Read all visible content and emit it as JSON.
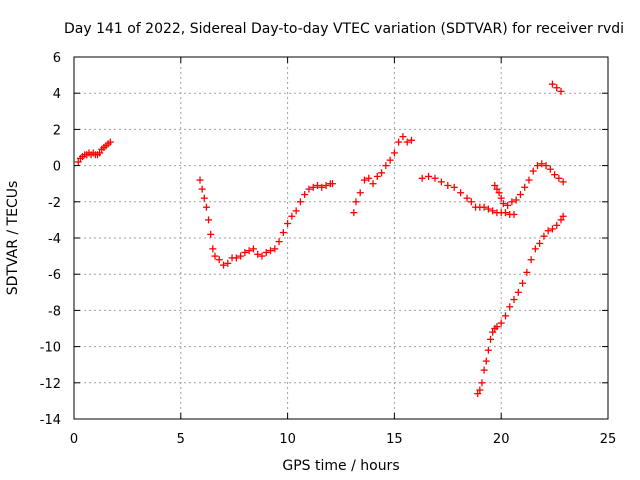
{
  "chart_data": {
    "type": "scatter",
    "title": "Day 141 of 2022, Sidereal Day-to-day VTEC variation (SDTVAR) for receiver rvdi",
    "xlabel": "GPS time / hours",
    "ylabel": "SDTVAR / TECUs",
    "xlim": [
      0,
      25
    ],
    "ylim": [
      -14,
      6
    ],
    "xticks": [
      "0",
      "5",
      "10",
      "15",
      "20",
      "25"
    ],
    "yticks": [
      "6",
      "4",
      "2",
      "0",
      "-2",
      "-4",
      "-6",
      "-8",
      "-10",
      "-12",
      "-14"
    ],
    "grid": true,
    "marker": "plus",
    "color": "#ff0000",
    "series": [
      {
        "points": [
          [
            0.2,
            0.2
          ],
          [
            0.3,
            0.4
          ],
          [
            0.4,
            0.5
          ],
          [
            0.5,
            0.6
          ],
          [
            0.6,
            0.6
          ],
          [
            0.7,
            0.7
          ],
          [
            0.8,
            0.6
          ],
          [
            0.9,
            0.7
          ],
          [
            1.0,
            0.6
          ],
          [
            1.1,
            0.6
          ],
          [
            1.2,
            0.7
          ],
          [
            1.3,
            0.9
          ],
          [
            1.4,
            1.0
          ],
          [
            1.5,
            1.1
          ],
          [
            1.6,
            1.2
          ],
          [
            1.7,
            1.3
          ],
          [
            5.9,
            -0.8
          ],
          [
            6.0,
            -1.3
          ],
          [
            6.1,
            -1.8
          ],
          [
            6.2,
            -2.3
          ],
          [
            6.3,
            -3.0
          ],
          [
            6.4,
            -3.8
          ],
          [
            6.5,
            -4.6
          ],
          [
            6.6,
            -5.0
          ],
          [
            6.8,
            -5.2
          ],
          [
            7.0,
            -5.5
          ],
          [
            7.2,
            -5.4
          ],
          [
            7.4,
            -5.1
          ],
          [
            7.6,
            -5.1
          ],
          [
            7.8,
            -5.0
          ],
          [
            8.0,
            -4.8
          ],
          [
            8.2,
            -4.7
          ],
          [
            8.4,
            -4.6
          ],
          [
            8.6,
            -4.9
          ],
          [
            8.8,
            -5.0
          ],
          [
            9.0,
            -4.8
          ],
          [
            9.2,
            -4.7
          ],
          [
            9.4,
            -4.6
          ],
          [
            9.6,
            -4.2
          ],
          [
            9.8,
            -3.7
          ],
          [
            10.0,
            -3.2
          ],
          [
            10.2,
            -2.8
          ],
          [
            10.4,
            -2.5
          ],
          [
            10.6,
            -2.0
          ],
          [
            10.8,
            -1.6
          ],
          [
            11.0,
            -1.3
          ],
          [
            11.2,
            -1.2
          ],
          [
            11.4,
            -1.1
          ],
          [
            11.6,
            -1.2
          ],
          [
            11.8,
            -1.1
          ],
          [
            12.0,
            -1.0
          ],
          [
            12.1,
            -1.0
          ],
          [
            13.1,
            -2.6
          ],
          [
            13.2,
            -2.0
          ],
          [
            13.4,
            -1.5
          ],
          [
            13.6,
            -0.8
          ],
          [
            13.8,
            -0.7
          ],
          [
            14.0,
            -1.0
          ],
          [
            14.2,
            -0.6
          ],
          [
            14.4,
            -0.4
          ],
          [
            14.6,
            0.0
          ],
          [
            14.8,
            0.3
          ],
          [
            15.0,
            0.7
          ],
          [
            15.2,
            1.3
          ],
          [
            15.4,
            1.6
          ],
          [
            15.6,
            1.3
          ],
          [
            15.8,
            1.4
          ],
          [
            16.3,
            -0.7
          ],
          [
            16.6,
            -0.6
          ],
          [
            16.9,
            -0.7
          ],
          [
            17.2,
            -0.9
          ],
          [
            17.5,
            -1.1
          ],
          [
            17.8,
            -1.2
          ],
          [
            18.1,
            -1.5
          ],
          [
            18.4,
            -1.8
          ],
          [
            18.6,
            -2.0
          ],
          [
            18.8,
            -2.3
          ],
          [
            19.0,
            -2.3
          ],
          [
            19.2,
            -2.3
          ],
          [
            19.4,
            -2.4
          ],
          [
            19.6,
            -2.5
          ],
          [
            19.8,
            -2.6
          ],
          [
            20.0,
            -2.6
          ],
          [
            20.2,
            -2.6
          ],
          [
            20.4,
            -2.7
          ],
          [
            20.6,
            -2.7
          ],
          [
            19.7,
            -1.1
          ],
          [
            19.8,
            -1.3
          ],
          [
            19.9,
            -1.5
          ],
          [
            20.0,
            -1.8
          ],
          [
            20.1,
            -2.1
          ],
          [
            20.3,
            -2.2
          ],
          [
            20.5,
            -2.0
          ],
          [
            20.7,
            -1.9
          ],
          [
            20.9,
            -1.6
          ],
          [
            21.1,
            -1.2
          ],
          [
            21.3,
            -0.8
          ],
          [
            21.5,
            -0.3
          ],
          [
            21.7,
            0.0
          ],
          [
            21.9,
            0.1
          ],
          [
            22.1,
            0.0
          ],
          [
            22.3,
            -0.2
          ],
          [
            22.5,
            -0.5
          ],
          [
            22.7,
            -0.7
          ],
          [
            22.9,
            -0.9
          ],
          [
            22.4,
            4.5
          ],
          [
            22.6,
            4.3
          ],
          [
            22.8,
            4.1
          ],
          [
            18.9,
            -12.6
          ],
          [
            19.0,
            -12.4
          ],
          [
            19.1,
            -12.0
          ],
          [
            19.2,
            -11.3
          ],
          [
            19.3,
            -10.8
          ],
          [
            19.4,
            -10.2
          ],
          [
            19.5,
            -9.6
          ],
          [
            19.6,
            -9.2
          ],
          [
            19.7,
            -9.0
          ],
          [
            19.8,
            -8.9
          ],
          [
            20.0,
            -8.7
          ],
          [
            20.2,
            -8.3
          ],
          [
            20.4,
            -7.8
          ],
          [
            20.6,
            -7.4
          ],
          [
            20.8,
            -7.0
          ],
          [
            21.0,
            -6.5
          ],
          [
            21.2,
            -5.9
          ],
          [
            21.4,
            -5.2
          ],
          [
            21.6,
            -4.6
          ],
          [
            21.8,
            -4.3
          ],
          [
            22.0,
            -3.9
          ],
          [
            22.2,
            -3.6
          ],
          [
            22.4,
            -3.5
          ],
          [
            22.6,
            -3.3
          ],
          [
            22.8,
            -3.0
          ],
          [
            22.9,
            -2.8
          ]
        ]
      }
    ]
  }
}
